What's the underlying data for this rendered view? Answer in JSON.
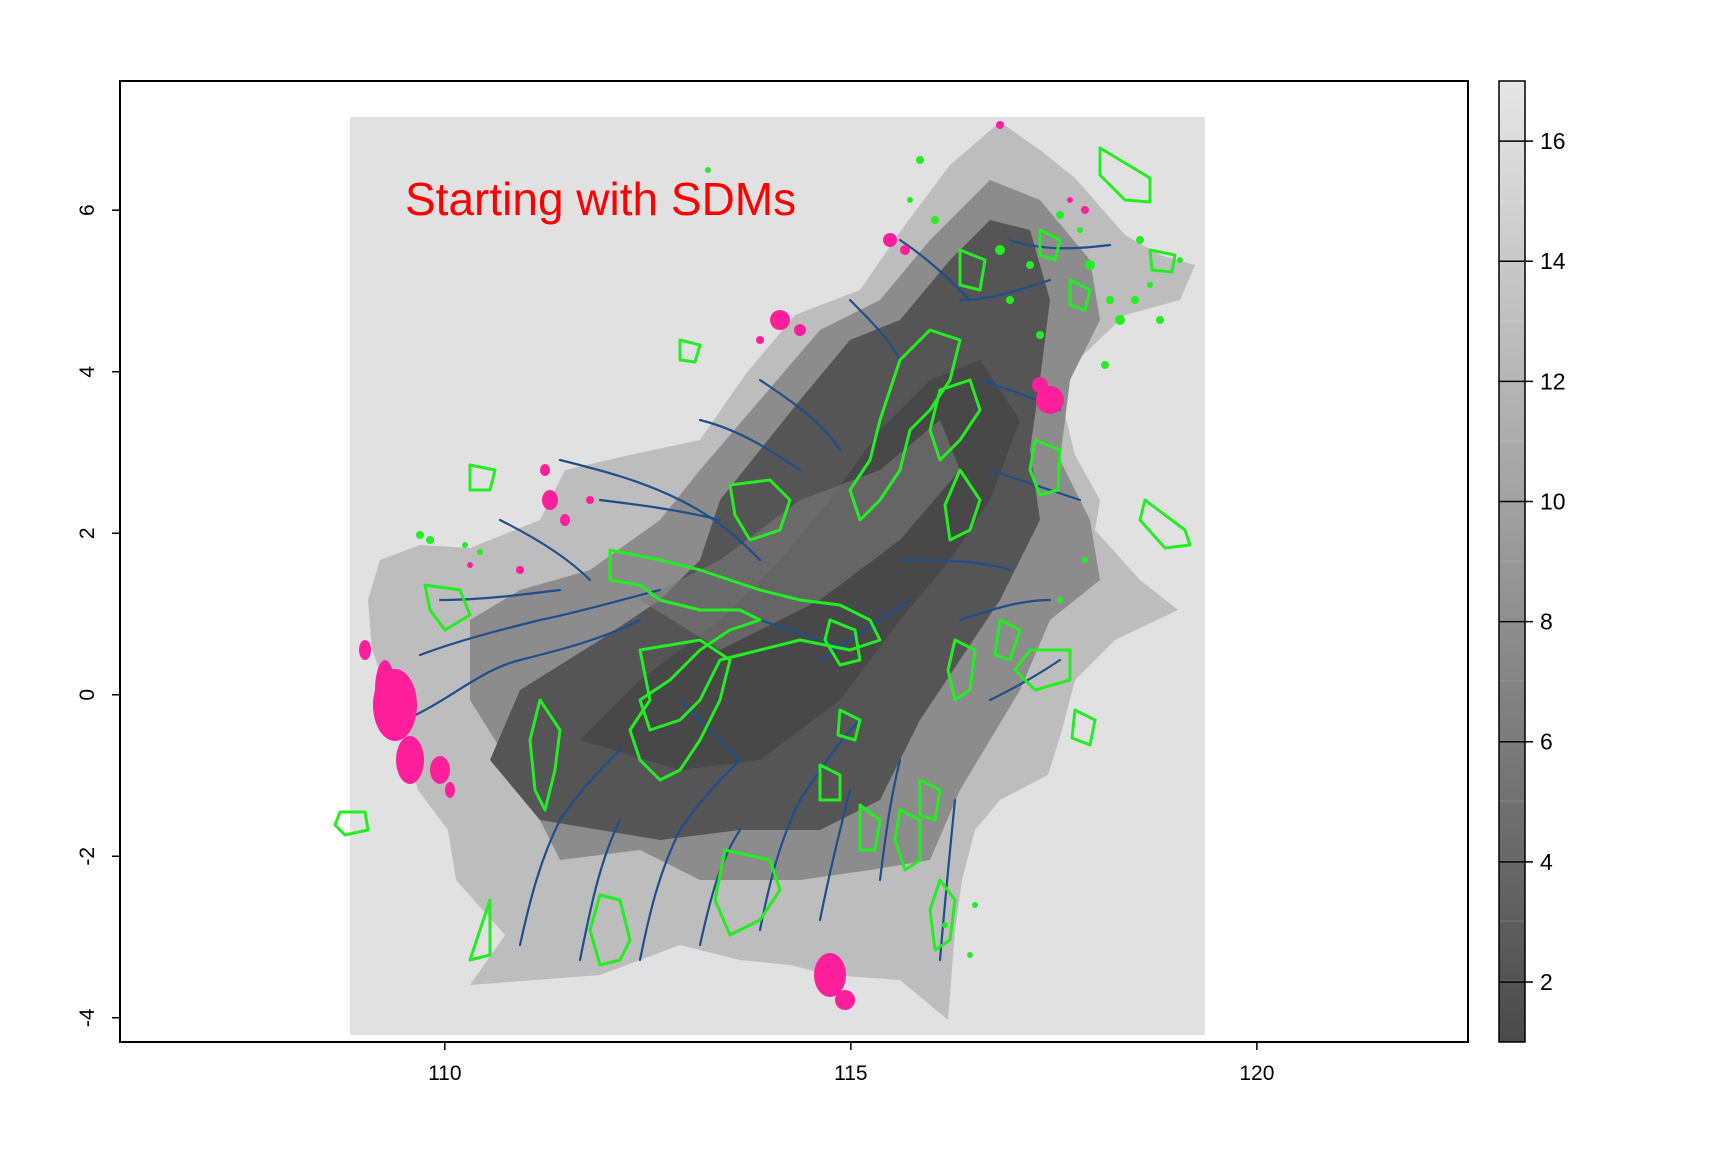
{
  "plot": {
    "title_text": "Starting with SDMs",
    "title_color": "#ff0000",
    "x_ticks": [
      {
        "value": 110,
        "label": "110"
      },
      {
        "value": 115,
        "label": "115"
      },
      {
        "value": 120,
        "label": "120"
      }
    ],
    "y_ticks": [
      {
        "value": 6,
        "label": "6"
      },
      {
        "value": 4,
        "label": "4"
      },
      {
        "value": 2,
        "label": "2"
      },
      {
        "value": 0,
        "label": "0"
      },
      {
        "value": -2,
        "label": "-2"
      },
      {
        "value": -4,
        "label": "-4"
      }
    ],
    "x_range": [
      106,
      122.6
    ],
    "y_range": [
      -4.3,
      7.6
    ]
  },
  "legend": {
    "range": [
      1,
      17
    ],
    "ticks": [
      {
        "value": 16,
        "label": "16"
      },
      {
        "value": 14,
        "label": "14"
      },
      {
        "value": 12,
        "label": "12"
      },
      {
        "value": 10,
        "label": "10"
      },
      {
        "value": 8,
        "label": "8"
      },
      {
        "value": 6,
        "label": "6"
      },
      {
        "value": 4,
        "label": "4"
      },
      {
        "value": 2,
        "label": "2"
      }
    ]
  },
  "colors": {
    "raster_background": "#e1e1e1",
    "low_value": "#4a4a4a",
    "high_value": "#e6e6e6",
    "rivers": "#1f4f8a",
    "protected_areas": "#22ee22",
    "occurrences": "#ff1f9a"
  },
  "layers": [
    "suitability-raster",
    "rivers",
    "protected-area-outlines",
    "occurrence-points"
  ]
}
